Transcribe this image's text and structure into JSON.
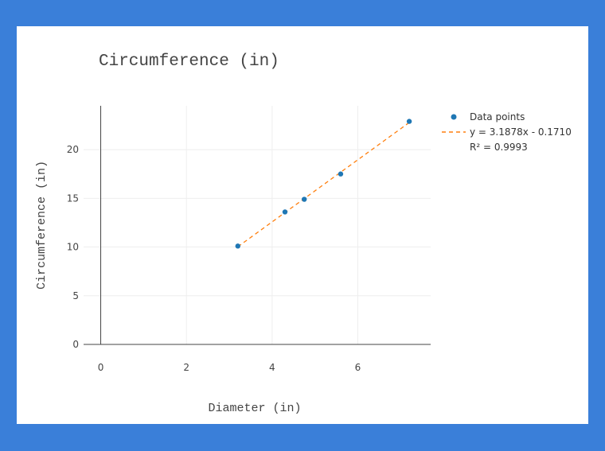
{
  "chart_data": {
    "type": "scatter",
    "title": "Circumference (in)",
    "xlabel": "Diameter (in)",
    "ylabel": "Circumference (in)",
    "xlim": [
      -0.4,
      7.7
    ],
    "ylim": [
      0,
      24.5
    ],
    "x_ticks": [
      0,
      2,
      4,
      6
    ],
    "y_ticks": [
      0,
      5,
      10,
      15,
      20
    ],
    "grid": true,
    "legend_position": "top-right",
    "series": [
      {
        "name": "Data points",
        "kind": "markers",
        "color": "#1f77b4",
        "x": [
          3.2,
          4.3,
          4.75,
          5.6,
          7.2
        ],
        "y": [
          10.1,
          13.6,
          14.9,
          17.5,
          22.9
        ]
      },
      {
        "name": "y = 3.1878x - 0.1710",
        "kind": "fit-line",
        "color": "#ff7f0e",
        "slope": 3.1878,
        "intercept": -0.171,
        "x_range": [
          3.2,
          7.2
        ]
      }
    ],
    "annotation": "R² = 0.9993"
  }
}
